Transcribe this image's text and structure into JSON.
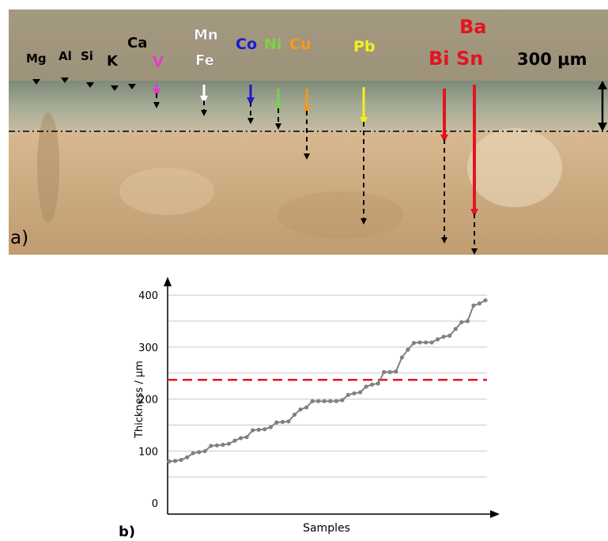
{
  "panel_a": {
    "label": "a)",
    "scale": "300 μm",
    "elements": [
      {
        "name": "Mg",
        "color": "#000000",
        "style": "small"
      },
      {
        "name": "Al",
        "color": "#000000",
        "style": "small"
      },
      {
        "name": "Si",
        "color": "#000000",
        "style": "small"
      },
      {
        "name": "K",
        "color": "#000000",
        "style": "small"
      },
      {
        "name": "Ca",
        "color": "#000000",
        "style": "small"
      },
      {
        "name": "V",
        "color": "#e23ad0",
        "style": "arrow"
      },
      {
        "name": "Mn",
        "color": "#ffffff",
        "style": "arrow"
      },
      {
        "name": "Fe",
        "color": "#ffffff",
        "style": "arrow"
      },
      {
        "name": "Co",
        "color": "#1a1ad0",
        "style": "arrow"
      },
      {
        "name": "Ni",
        "color": "#7ed04a",
        "style": "arrow"
      },
      {
        "name": "Cu",
        "color": "#f59a1e",
        "style": "arrow"
      },
      {
        "name": "Pb",
        "color": "#f5ef1e",
        "style": "arrow"
      },
      {
        "name": "Bi",
        "color": "#e3141e",
        "style": "arrow"
      },
      {
        "name": "Ba",
        "color": "#e3141e",
        "style": "arrow"
      },
      {
        "name": "Sn",
        "color": "#e3141e",
        "style": "arrow"
      }
    ]
  },
  "panel_b": {
    "label": "b)",
    "threshold_color": "#e3141e",
    "line_color": "#808080"
  },
  "chart_data": {
    "type": "line",
    "xlabel": "Samples",
    "ylabel": "Thickness / μm",
    "ylim": [
      0,
      420
    ],
    "yticks": [
      0,
      100,
      200,
      300,
      400
    ],
    "grid": true,
    "reference_line": 237,
    "series": [
      {
        "values": [
          80,
          81,
          83,
          88,
          96,
          98,
          100,
          110,
          111,
          112,
          114,
          120,
          125,
          127,
          140,
          141,
          142,
          146,
          155,
          156,
          157,
          170,
          180,
          184,
          196,
          196,
          196,
          196,
          196,
          198,
          208,
          211,
          213,
          224,
          228,
          230,
          252,
          252,
          253,
          280,
          295,
          308,
          309,
          309,
          309,
          315,
          320,
          322,
          335,
          348,
          350,
          380,
          384,
          390
        ]
      }
    ]
  }
}
